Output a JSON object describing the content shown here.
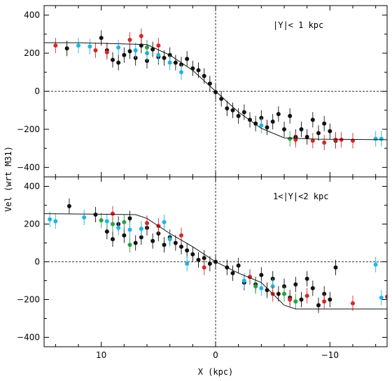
{
  "chart_data": {
    "type": "scatter",
    "xlabel": "X (kpc)",
    "ylabel": "Vel (wrt M31)",
    "xlim": [
      15,
      -15
    ],
    "ylim": [
      -450,
      450
    ],
    "x_ticks": [
      10,
      0,
      -10
    ],
    "y_ticks": [
      -400,
      -200,
      0,
      200,
      400
    ],
    "x_axis_reversed": true,
    "reference_lines": {
      "vertical_x": 0,
      "horizontal_y": 0,
      "style": "dashed"
    },
    "marker_colors": {
      "black": "#111111",
      "red": "#d42828",
      "cyan": "#22b4e0",
      "green": "#28a040"
    },
    "panels": [
      {
        "label": "|Y|< 1 kpc",
        "model_curve": [
          {
            "x": 15,
            "y": 255
          },
          {
            "x": 12,
            "y": 255
          },
          {
            "x": 9,
            "y": 250
          },
          {
            "x": 6,
            "y": 245
          },
          {
            "x": 4,
            "y": 190
          },
          {
            "x": 2,
            "y": 110
          },
          {
            "x": 0,
            "y": 0
          },
          {
            "x": -2,
            "y": -110
          },
          {
            "x": -4,
            "y": -195
          },
          {
            "x": -6,
            "y": -245
          },
          {
            "x": -9,
            "y": -252
          },
          {
            "x": -15,
            "y": -255
          }
        ],
        "points": {
          "black": [
            {
              "x": 13,
              "y": 225
            },
            {
              "x": 10,
              "y": 280
            },
            {
              "x": 9.5,
              "y": 215
            },
            {
              "x": 9,
              "y": 165
            },
            {
              "x": 8.5,
              "y": 150
            },
            {
              "x": 8,
              "y": 190
            },
            {
              "x": 7.5,
              "y": 210
            },
            {
              "x": 7,
              "y": 175
            },
            {
              "x": 6.5,
              "y": 240
            },
            {
              "x": 6,
              "y": 160
            },
            {
              "x": 5.5,
              "y": 220
            },
            {
              "x": 5,
              "y": 180
            },
            {
              "x": 4.5,
              "y": 175
            },
            {
              "x": 4,
              "y": 190
            },
            {
              "x": 3.5,
              "y": 150
            },
            {
              "x": 3,
              "y": 140
            },
            {
              "x": 2.5,
              "y": 170
            },
            {
              "x": 2,
              "y": 120
            },
            {
              "x": 1.5,
              "y": 110
            },
            {
              "x": 1,
              "y": 80
            },
            {
              "x": 0.5,
              "y": 40
            },
            {
              "x": 0,
              "y": -5
            },
            {
              "x": -0.5,
              "y": -40
            },
            {
              "x": -1,
              "y": -90
            },
            {
              "x": -1.5,
              "y": -100
            },
            {
              "x": -2,
              "y": -130
            },
            {
              "x": -2.5,
              "y": -110
            },
            {
              "x": -3,
              "y": -150
            },
            {
              "x": -3.5,
              "y": -170
            },
            {
              "x": -4,
              "y": -140
            },
            {
              "x": -4.5,
              "y": -190
            },
            {
              "x": -5,
              "y": -160
            },
            {
              "x": -5.5,
              "y": -120
            },
            {
              "x": -6,
              "y": -200
            },
            {
              "x": -6.5,
              "y": -130
            },
            {
              "x": -7,
              "y": -240
            },
            {
              "x": -7.5,
              "y": -200
            },
            {
              "x": -8,
              "y": -240
            },
            {
              "x": -8.5,
              "y": -150
            },
            {
              "x": -9,
              "y": -220
            },
            {
              "x": -9.5,
              "y": -170
            },
            {
              "x": -10,
              "y": -210
            },
            {
              "x": -10.5,
              "y": -260
            }
          ],
          "red": [
            {
              "x": 14,
              "y": 240
            },
            {
              "x": 10.5,
              "y": 215
            },
            {
              "x": 9.5,
              "y": 205
            },
            {
              "x": 7.5,
              "y": 270
            },
            {
              "x": 6.5,
              "y": 290
            },
            {
              "x": 5,
              "y": 240
            },
            {
              "x": -7,
              "y": -255
            },
            {
              "x": -8.5,
              "y": -260
            },
            {
              "x": -9.5,
              "y": -270
            },
            {
              "x": -10.5,
              "y": -255
            },
            {
              "x": -11,
              "y": -255
            },
            {
              "x": -12,
              "y": -260
            }
          ],
          "cyan": [
            {
              "x": 15.2,
              "y": 255
            },
            {
              "x": 12,
              "y": 240
            },
            {
              "x": 11,
              "y": 235
            },
            {
              "x": 8.5,
              "y": 230
            },
            {
              "x": 7,
              "y": 215
            },
            {
              "x": 6,
              "y": 200
            },
            {
              "x": 5,
              "y": 190
            },
            {
              "x": 4,
              "y": 150
            },
            {
              "x": 3,
              "y": 100
            },
            {
              "x": -4,
              "y": -180
            },
            {
              "x": -14,
              "y": -250
            },
            {
              "x": -14.5,
              "y": -250
            }
          ],
          "green": [
            {
              "x": 6,
              "y": 230
            },
            {
              "x": -6.5,
              "y": -250
            }
          ]
        }
      },
      {
        "label": "1<|Y|<2 kpc",
        "model_curve": [
          {
            "x": 15,
            "y": 255
          },
          {
            "x": 7,
            "y": 250
          },
          {
            "x": 6,
            "y": 230
          },
          {
            "x": 4,
            "y": 150
          },
          {
            "x": 2,
            "y": 80
          },
          {
            "x": 0,
            "y": 0
          },
          {
            "x": -2,
            "y": -60
          },
          {
            "x": -4,
            "y": -110
          },
          {
            "x": -6,
            "y": -230
          },
          {
            "x": -7,
            "y": -250
          },
          {
            "x": -15,
            "y": -250
          }
        ],
        "points": {
          "black": [
            {
              "x": 12.8,
              "y": 295
            },
            {
              "x": 10.5,
              "y": 250
            },
            {
              "x": 9.5,
              "y": 160
            },
            {
              "x": 9,
              "y": 120
            },
            {
              "x": 8.5,
              "y": 200
            },
            {
              "x": 8,
              "y": 140
            },
            {
              "x": 7.5,
              "y": 230
            },
            {
              "x": 7,
              "y": 100
            },
            {
              "x": 6.5,
              "y": 130
            },
            {
              "x": 6,
              "y": 180
            },
            {
              "x": 5.5,
              "y": 110
            },
            {
              "x": 5,
              "y": 150
            },
            {
              "x": 4.5,
              "y": 90
            },
            {
              "x": 4,
              "y": 130
            },
            {
              "x": 3.5,
              "y": 100
            },
            {
              "x": 3,
              "y": 80
            },
            {
              "x": 2.5,
              "y": 60
            },
            {
              "x": 2,
              "y": 40
            },
            {
              "x": 1.5,
              "y": 10
            },
            {
              "x": 1,
              "y": 20
            },
            {
              "x": 0.5,
              "y": -10
            },
            {
              "x": 0,
              "y": 0
            },
            {
              "x": -1,
              "y": -30
            },
            {
              "x": -1.5,
              "y": -60
            },
            {
              "x": -2,
              "y": -20
            },
            {
              "x": -2.5,
              "y": -110
            },
            {
              "x": -3,
              "y": -80
            },
            {
              "x": -3.5,
              "y": -120
            },
            {
              "x": -4,
              "y": -70
            },
            {
              "x": -4.5,
              "y": -150
            },
            {
              "x": -5,
              "y": -90
            },
            {
              "x": -5.5,
              "y": -170
            },
            {
              "x": -6,
              "y": -130
            },
            {
              "x": -6.5,
              "y": -190
            },
            {
              "x": -7,
              "y": -120
            },
            {
              "x": -7.5,
              "y": -200
            },
            {
              "x": -8,
              "y": -90
            },
            {
              "x": -8.5,
              "y": -140
            },
            {
              "x": -9,
              "y": -230
            },
            {
              "x": -9.5,
              "y": -170
            },
            {
              "x": -10,
              "y": -200
            },
            {
              "x": -10.5,
              "y": -30
            }
          ],
          "red": [
            {
              "x": 9,
              "y": 255
            },
            {
              "x": 6,
              "y": 205
            },
            {
              "x": 5,
              "y": 190
            },
            {
              "x": 3,
              "y": 140
            },
            {
              "x": 1,
              "y": -30
            },
            {
              "x": -3,
              "y": -80
            },
            {
              "x": -5,
              "y": -170
            },
            {
              "x": -6.5,
              "y": -200
            },
            {
              "x": -8,
              "y": -180
            },
            {
              "x": -9.5,
              "y": -210
            },
            {
              "x": -12,
              "y": -220
            },
            {
              "x": -15,
              "y": -185
            }
          ],
          "cyan": [
            {
              "x": 14.5,
              "y": 225
            },
            {
              "x": 14,
              "y": 215
            },
            {
              "x": 11.5,
              "y": 235
            },
            {
              "x": 9.5,
              "y": 215
            },
            {
              "x": 8.5,
              "y": 180
            },
            {
              "x": 7.5,
              "y": 170
            },
            {
              "x": 6.5,
              "y": 175
            },
            {
              "x": 4.5,
              "y": 210
            },
            {
              "x": 4,
              "y": 120
            },
            {
              "x": 2.5,
              "y": -10
            },
            {
              "x": -2.5,
              "y": -100
            },
            {
              "x": -4,
              "y": -140
            },
            {
              "x": -5,
              "y": -130
            },
            {
              "x": -14,
              "y": -15
            },
            {
              "x": -14.5,
              "y": -190
            }
          ],
          "green": [
            {
              "x": 10,
              "y": 220
            },
            {
              "x": 9,
              "y": 200
            },
            {
              "x": 8,
              "y": 210
            },
            {
              "x": 7.5,
              "y": 90
            },
            {
              "x": -3.5,
              "y": -130
            },
            {
              "x": -6,
              "y": -170
            },
            {
              "x": -7,
              "y": -210
            }
          ]
        }
      }
    ]
  }
}
